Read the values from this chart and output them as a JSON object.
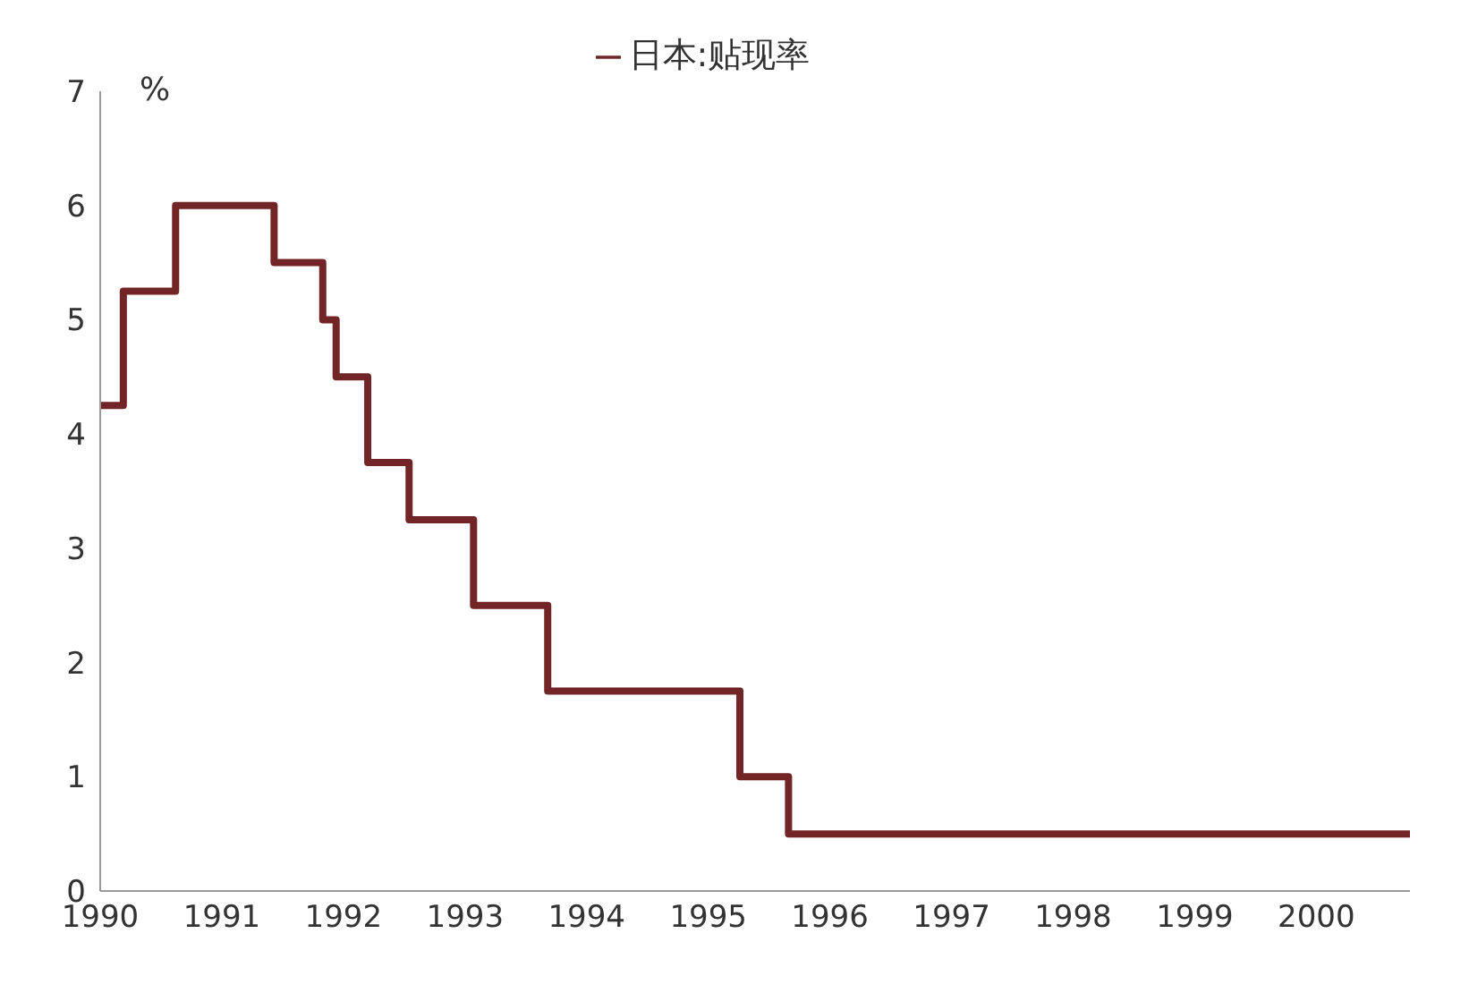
{
  "chart_data": {
    "type": "step",
    "ylabel": "%",
    "x": [
      1990,
      1990.19,
      1990.62,
      1991.43,
      1991.83,
      1991.94,
      1992.2,
      1992.54,
      1993.07,
      1993.68,
      1995.26,
      1995.66,
      2000.77
    ],
    "series": [
      {
        "name": "日本:贴现率",
        "color": "#722526",
        "values": [
          4.25,
          5.25,
          6,
          5.5,
          5,
          4.5,
          3.75,
          3.25,
          2.5,
          1.75,
          1,
          0.5,
          0.5
        ]
      }
    ],
    "xlim": [
      1990,
      2000.77
    ],
    "xticks": [
      1990,
      1991,
      1992,
      1993,
      1994,
      1995,
      1996,
      1997,
      1998,
      1999,
      2000
    ],
    "ylim": [
      0,
      7
    ],
    "yticks": [
      0,
      1,
      2,
      3,
      4,
      5,
      6,
      7
    ],
    "grid": false,
    "legend": "top",
    "marker": "none",
    "line_style": "solid"
  }
}
